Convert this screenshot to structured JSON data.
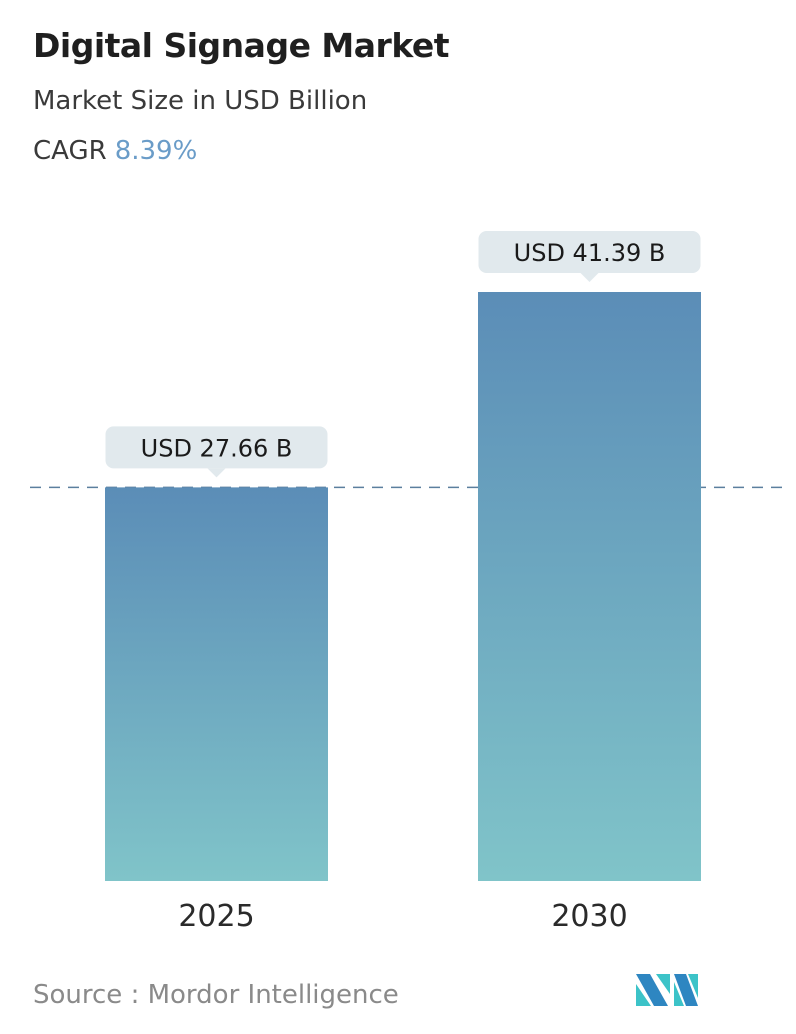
{
  "title": "Digital Signage Market",
  "subtitle": "Market Size in USD Billion",
  "cagr_label": "CAGR",
  "cagr_value": "8.39%",
  "source": "Source :  Mordor Intelligence",
  "logo_text": "Mordor Intelligence",
  "colors": {
    "bar_top": "#5b8db7",
    "bar_bottom": "#80c4c9",
    "label_bg": "#e1e9ed",
    "cagr": "#6a9cc8",
    "dashed_line": "#5b7f9e"
  },
  "chart_data": {
    "type": "bar",
    "categories": [
      "2025",
      "2030"
    ],
    "values": [
      27.66,
      41.39
    ],
    "data_labels": [
      "USD 27.66 B",
      "USD 41.39 B"
    ],
    "ylabel": "",
    "xlabel": "",
    "grid": false,
    "reference_line": 27.66
  }
}
